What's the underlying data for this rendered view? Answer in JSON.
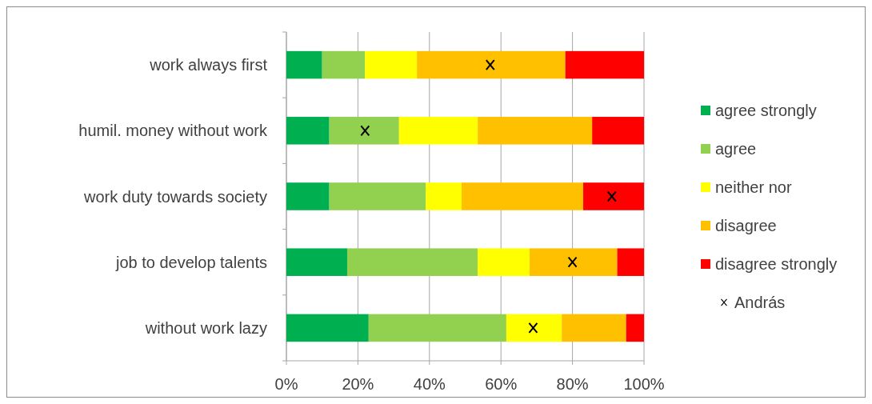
{
  "chart_data": {
    "type": "bar",
    "orientation": "horizontal",
    "stacked": true,
    "categories": [
      "work always first",
      "humil. money without work",
      "work duty towards society",
      "job to develop talents",
      "without work lazy"
    ],
    "series": [
      {
        "name": "agree strongly",
        "color": "#00b050",
        "values": [
          10,
          12,
          12,
          17,
          23
        ]
      },
      {
        "name": "agree",
        "color": "#92d050",
        "values": [
          12,
          19.5,
          27,
          36.5,
          38.5
        ]
      },
      {
        "name": "neither nor",
        "color": "#ffff00",
        "values": [
          14.5,
          22,
          10,
          14.5,
          15.5
        ]
      },
      {
        "name": "disagree",
        "color": "#ffc000",
        "values": [
          41.5,
          32,
          34,
          24.5,
          18
        ]
      },
      {
        "name": "disagree strongly",
        "color": "#ff0000",
        "values": [
          22,
          14.5,
          17,
          7.5,
          5
        ]
      },
      {
        "name": "András",
        "type": "scatter",
        "color": "#000000",
        "marker": "cross",
        "values": [
          57,
          22,
          91,
          80,
          69
        ]
      }
    ],
    "xlim": [
      0,
      100
    ],
    "xticks": [
      {
        "value": 0,
        "label": "0%"
      },
      {
        "value": 20,
        "label": "20%"
      },
      {
        "value": 40,
        "label": "40%"
      },
      {
        "value": 60,
        "label": "60%"
      },
      {
        "value": 80,
        "label": "80%"
      },
      {
        "value": 100,
        "label": "100%"
      }
    ],
    "grid": "x",
    "legend": "right"
  }
}
